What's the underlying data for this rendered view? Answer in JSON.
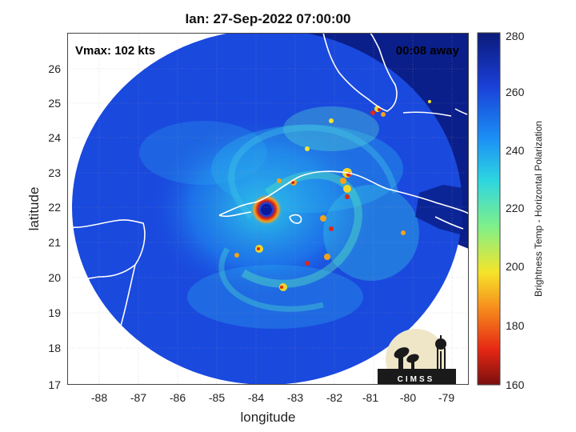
{
  "title": "Ian: 27-Sep-2022 07:00:00",
  "vmax_label": "Vmax: 102 kts",
  "time_away_label": "00:08 away",
  "x_axis": {
    "label": "longitude",
    "ticks": [
      "-88",
      "-87",
      "-86",
      "-85",
      "-84",
      "-83",
      "-82",
      "-81",
      "-80",
      "-79"
    ]
  },
  "y_axis": {
    "label": "latitude",
    "ticks": [
      "26",
      "25",
      "24",
      "23",
      "22",
      "21",
      "20",
      "19",
      "18",
      "17"
    ]
  },
  "colorbar": {
    "label": "Brightness Temp - Horizontal Polarization",
    "ticks": [
      "280",
      "260",
      "240",
      "220",
      "200",
      "180",
      "160"
    ],
    "colors": [
      "#0b1a7a",
      "#1a3fd6",
      "#1b8ff5",
      "#2ed6e0",
      "#7ff08a",
      "#f5e42a",
      "#f78f1d",
      "#e52713",
      "#7a0f0f"
    ]
  },
  "logo": {
    "text": "CIMSS"
  }
}
